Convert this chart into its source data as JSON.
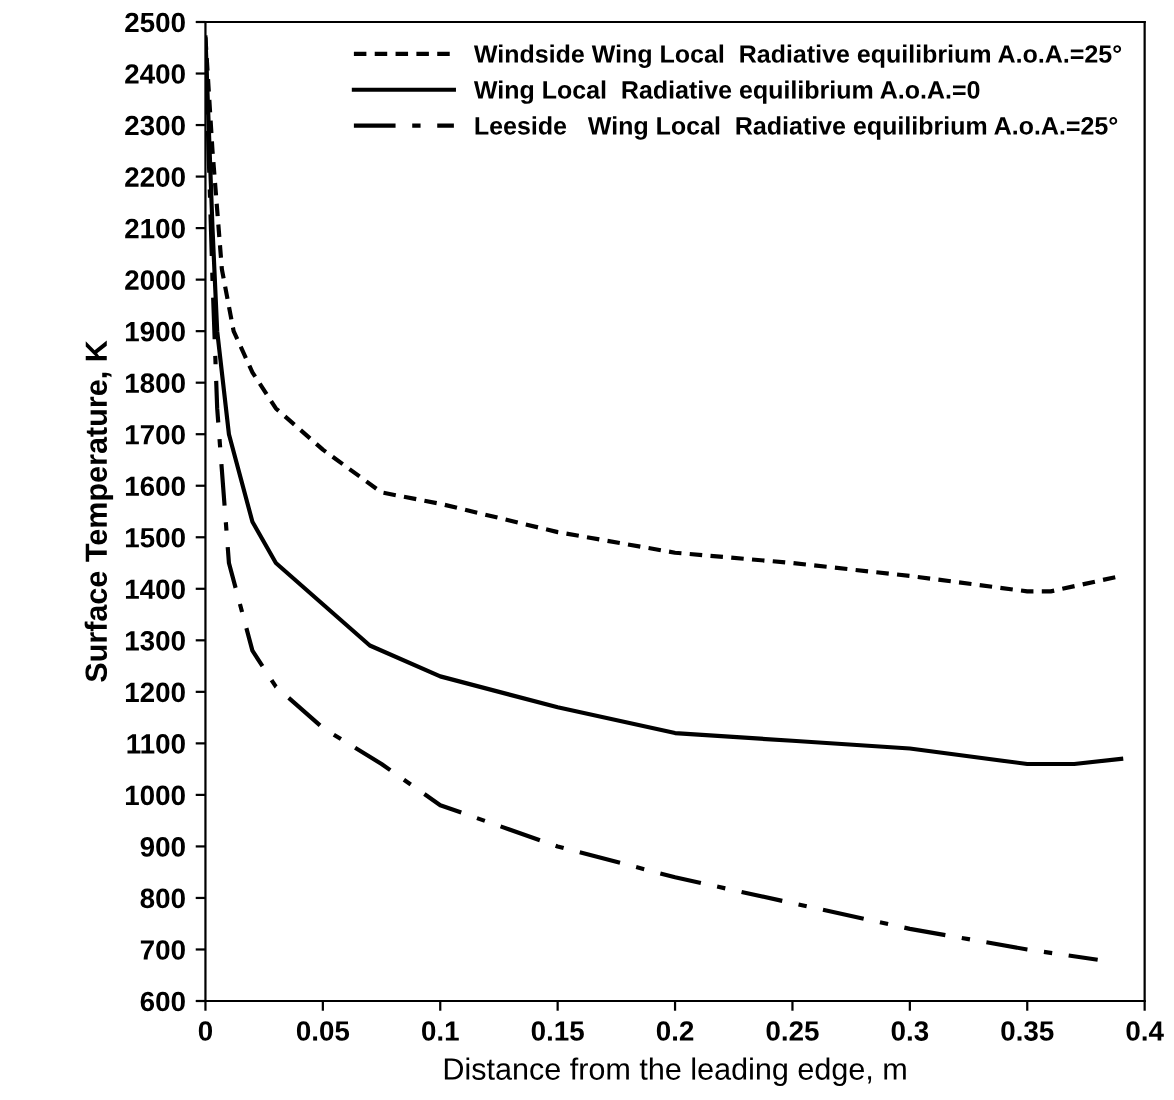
{
  "chart_data": {
    "type": "line",
    "xlabel": "Distance from the leading edge, m",
    "ylabel": "Surface Temperature, K",
    "xlim": [
      0,
      0.4
    ],
    "xticks": [
      0,
      0.05,
      0.1,
      0.15,
      0.2,
      0.25,
      0.3,
      0.35,
      0.4
    ],
    "ylim": [
      600,
      2500
    ],
    "yticks": [
      600,
      700,
      800,
      900,
      1000,
      1100,
      1200,
      1300,
      1400,
      1500,
      1600,
      1700,
      1800,
      1900,
      2000,
      2100,
      2200,
      2300,
      2400,
      2500
    ],
    "grid": false,
    "legend": "top right",
    "marker": "none",
    "series": [
      {
        "name": "Windside Wing Local  Radiative equilibrium A.o.A.=25°",
        "color": "#000000",
        "line_style": "dashed",
        "x": [
          0,
          0.003,
          0.007,
          0.012,
          0.02,
          0.03,
          0.05,
          0.075,
          0.1,
          0.15,
          0.2,
          0.25,
          0.3,
          0.35,
          0.36,
          0.39
        ],
        "values": [
          2470,
          2250,
          2020,
          1900,
          1820,
          1750,
          1670,
          1587,
          1565,
          1510,
          1470,
          1450,
          1425,
          1395,
          1395,
          1425
        ]
      },
      {
        "name": "Wing Local  Radiative equilibrium A.o.A.=0",
        "color": "#000000",
        "line_style": "solid",
        "x": [
          0,
          0.003,
          0.005,
          0.01,
          0.02,
          0.03,
          0.05,
          0.07,
          0.1,
          0.15,
          0.2,
          0.25,
          0.3,
          0.35,
          0.37,
          0.39
        ],
        "values": [
          2470,
          2100,
          1900,
          1700,
          1530,
          1450,
          1370,
          1290,
          1230,
          1170,
          1120,
          1105,
          1090,
          1060,
          1060,
          1070
        ]
      },
      {
        "name": "Leeside   Wing Local  Radiative equilibrium A.o.A.=25°",
        "color": "#000000",
        "line_style": "dashdot",
        "x": [
          0,
          0.003,
          0.005,
          0.01,
          0.02,
          0.03,
          0.05,
          0.075,
          0.1,
          0.15,
          0.2,
          0.25,
          0.3,
          0.35,
          0.38
        ],
        "values": [
          2450,
          2000,
          1750,
          1450,
          1280,
          1210,
          1130,
          1060,
          980,
          900,
          840,
          790,
          740,
          700,
          680
        ]
      }
    ]
  }
}
